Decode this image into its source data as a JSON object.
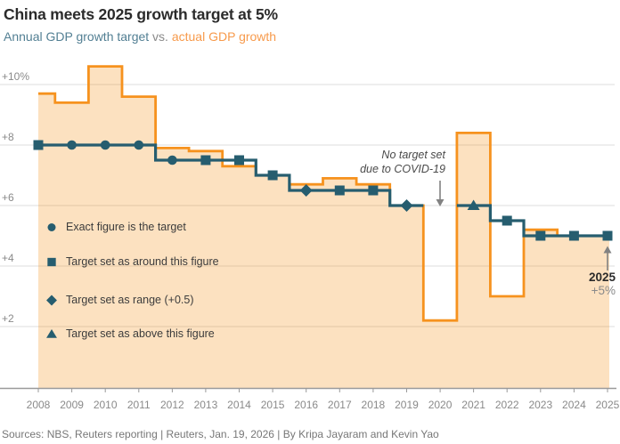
{
  "header": {
    "title": "China meets 2025 growth target at 5%",
    "subtitle_target": "Annual GDP growth target",
    "subtitle_vs": " vs. ",
    "subtitle_actual": "actual GDP growth"
  },
  "colors": {
    "teal": "#265d6f",
    "teal_light": "#527f93",
    "orange": "#f6921e",
    "orange_light": "#f79a4b",
    "area_fill": "rgba(246,146,30,0.28)",
    "grid": "#dcdcdc",
    "axis": "#9a9a9a",
    "arrow": "#828282",
    "text_dark": "#2b2b2b",
    "text_gray": "#8a8a8a"
  },
  "legend": [
    {
      "marker": "circle",
      "label": "Exact figure is the target"
    },
    {
      "marker": "square",
      "label": "Target set as around this figure"
    },
    {
      "marker": "diamond",
      "label": "Target set as range (+0.5)"
    },
    {
      "marker": "triangle",
      "label": "Target set as above this figure"
    }
  ],
  "annotations": {
    "covid_line1": "No target set",
    "covid_line2": "due to COVID-19",
    "final_year": "2025",
    "final_value": "+5%"
  },
  "y_axis": {
    "tick_labels": [
      "+10%",
      "+8",
      "+6",
      "+4",
      "+2"
    ],
    "tick_values": [
      10,
      8,
      6,
      4,
      2
    ]
  },
  "source": "Sources: NBS, Reuters reporting | Reuters, Jan. 19, 2026 | By Kripa Jayaram and Kevin Yao",
  "chart_data": {
    "type": "area",
    "subtype": "step-area with step-line overlay",
    "x": [
      2008,
      2009,
      2010,
      2011,
      2012,
      2013,
      2014,
      2015,
      2016,
      2017,
      2018,
      2019,
      2020,
      2021,
      2022,
      2023,
      2024,
      2025
    ],
    "series": [
      {
        "name": "Actual GDP growth",
        "type": "step-area",
        "color": "#f6921e",
        "values": [
          9.7,
          9.4,
          10.6,
          9.6,
          7.9,
          7.8,
          7.3,
          7.0,
          6.7,
          6.9,
          6.7,
          6.0,
          2.2,
          8.4,
          3.0,
          5.2,
          5.0,
          5.0
        ]
      },
      {
        "name": "GDP growth target",
        "type": "step-line",
        "color": "#265d6f",
        "values": [
          8,
          8,
          8,
          8,
          7.5,
          7.5,
          7.5,
          7,
          6.5,
          6.5,
          6.5,
          6,
          null,
          6,
          5.5,
          5,
          5,
          5
        ],
        "markers": [
          "square",
          "circle",
          "circle",
          "circle",
          "circle",
          "square",
          "square",
          "square",
          "diamond",
          "square",
          "square",
          "diamond",
          null,
          "triangle",
          "square",
          "square",
          "square",
          "square"
        ]
      }
    ],
    "ylim": [
      0,
      11
    ],
    "ylabel": "",
    "xlabel": "",
    "grid": "horizontal",
    "legend_position": "inside-left",
    "notes": [
      "No target set for 2020 due to COVID-19",
      "2025 target met at +5%"
    ]
  }
}
